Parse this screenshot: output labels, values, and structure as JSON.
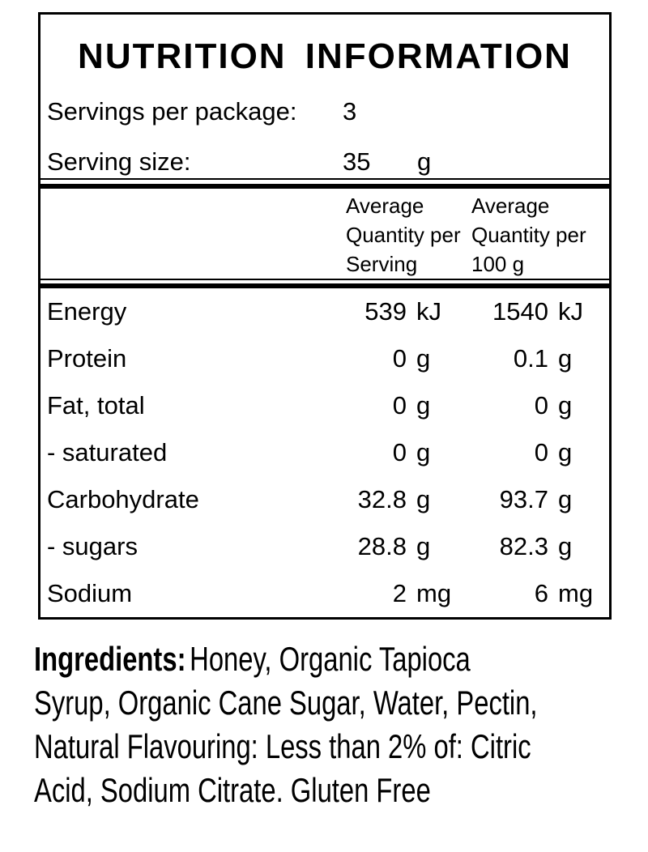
{
  "panel": {
    "title": "NUTRITION INFORMATION",
    "servings_per_package": {
      "label": "Servings per package:",
      "value": "3"
    },
    "serving_size": {
      "label": "Serving size:",
      "value": "35",
      "unit": "g"
    },
    "columns": [
      {
        "lines": [
          "Average",
          "Quantity per",
          "Serving"
        ]
      },
      {
        "lines": [
          "Average",
          "Quantity per",
          "100 g"
        ]
      }
    ],
    "rows": [
      {
        "name": "Energy",
        "per_serving": {
          "value": "539",
          "unit": "kJ"
        },
        "per_100g": {
          "value": "1540",
          "unit": "kJ"
        }
      },
      {
        "name": "Protein",
        "per_serving": {
          "value": "0",
          "unit": "g"
        },
        "per_100g": {
          "value": "0.1",
          "unit": "g"
        }
      },
      {
        "name": "Fat, total",
        "per_serving": {
          "value": "0",
          "unit": "g"
        },
        "per_100g": {
          "value": "0",
          "unit": "g"
        }
      },
      {
        "name": "- saturated",
        "per_serving": {
          "value": "0",
          "unit": "g"
        },
        "per_100g": {
          "value": "0",
          "unit": "g"
        }
      },
      {
        "name": "Carbohydrate",
        "per_serving": {
          "value": "32.8",
          "unit": "g"
        },
        "per_100g": {
          "value": "93.7",
          "unit": "g"
        }
      },
      {
        "name": "- sugars",
        "per_serving": {
          "value": "28.8",
          "unit": "g"
        },
        "per_100g": {
          "value": "82.3",
          "unit": "g"
        }
      },
      {
        "name": "Sodium",
        "per_serving": {
          "value": "2",
          "unit": "mg"
        },
        "per_100g": {
          "value": "6",
          "unit": "mg"
        }
      }
    ]
  },
  "ingredients": {
    "label": "Ingredients:",
    "lines": [
      "Honey, Organic Tapioca",
      "Syrup, Organic Cane Sugar, Water, Pectin,",
      "Natural Flavouring: Less than 2% of: Citric",
      "Acid, Sodium Citrate. Gluten Free"
    ]
  },
  "colors": {
    "text": "#000000",
    "background": "#ffffff"
  }
}
